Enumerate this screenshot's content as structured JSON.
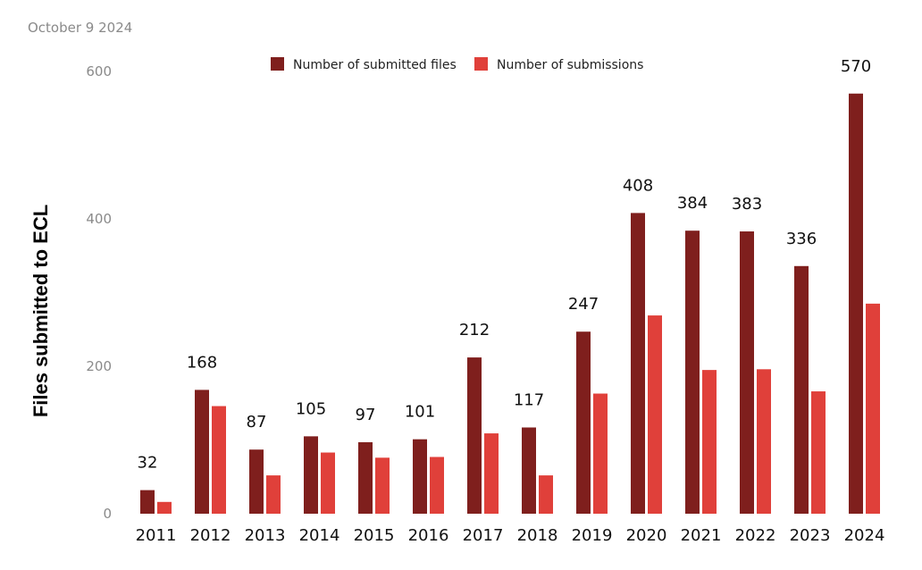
{
  "date_text": "October 9 2024",
  "colors": {
    "files": "#7f1f1d",
    "submissions": "#e0403a"
  },
  "chart_data": {
    "type": "bar",
    "title": "",
    "xlabel": "",
    "ylabel": "Files submitted to ECL",
    "ylim": [
      0,
      600
    ],
    "yticks": [
      0,
      200,
      400,
      600
    ],
    "grid": false,
    "legend_position": "top-center",
    "categories": [
      "2011",
      "2012",
      "2013",
      "2014",
      "2015",
      "2016",
      "2017",
      "2018",
      "2019",
      "2020",
      "2021",
      "2022",
      "2023",
      "2024"
    ],
    "series": [
      {
        "name": "Number of submitted files",
        "values": [
          32,
          168,
          87,
          105,
          97,
          101,
          212,
          117,
          247,
          408,
          384,
          383,
          336,
          570
        ],
        "data_labels": true
      },
      {
        "name": "Number of submissions",
        "values": [
          16,
          146,
          52,
          83,
          76,
          77,
          109,
          52,
          163,
          269,
          195,
          196,
          166,
          285
        ],
        "data_labels": false
      }
    ]
  }
}
